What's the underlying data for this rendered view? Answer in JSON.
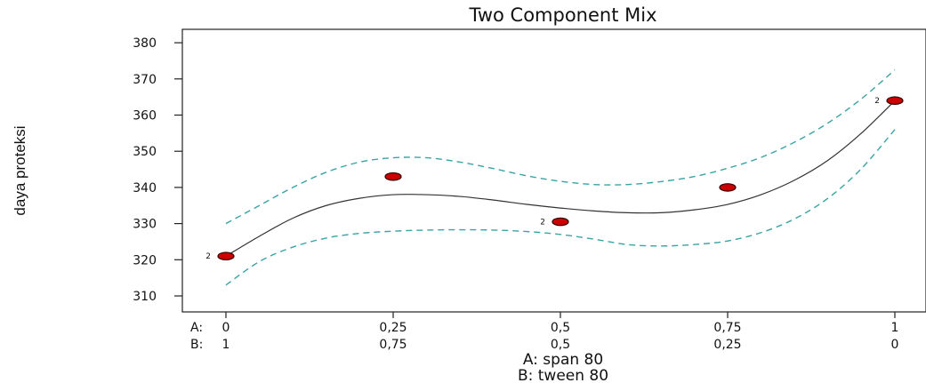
{
  "chart_data": {
    "type": "line",
    "title": "Two Component Mix",
    "ylabel": "daya proteksi",
    "xlabel_lines": [
      "A: span 80",
      "B: tween 80"
    ],
    "ylim": [
      305,
      385
    ],
    "yticks": [
      310,
      320,
      330,
      340,
      350,
      360,
      370,
      380
    ],
    "xlim": [
      0,
      1
    ],
    "component_row_labels": [
      "A:",
      "B:"
    ],
    "xticks": [
      {
        "x": 0,
        "a": "0",
        "b": "1"
      },
      {
        "x": 0.25,
        "a": "0,25",
        "b": "0,75"
      },
      {
        "x": 0.5,
        "a": "0,5",
        "b": "0,5"
      },
      {
        "x": 0.75,
        "a": "0,75",
        "b": "0,25"
      },
      {
        "x": 1,
        "a": "1",
        "b": "0"
      }
    ],
    "grid": false,
    "series": [
      {
        "role": "fit",
        "color": "#333333",
        "x": [
          0,
          0.05,
          0.1,
          0.15,
          0.2,
          0.25,
          0.3,
          0.35,
          0.4,
          0.45,
          0.5,
          0.55,
          0.6,
          0.65,
          0.7,
          0.75,
          0.8,
          0.85,
          0.9,
          0.95,
          1
        ],
        "y": [
          321,
          326.5,
          331.5,
          335,
          337,
          338,
          338,
          337.5,
          336.5,
          335.3,
          334.3,
          333.5,
          333,
          333,
          333.8,
          335.3,
          338,
          342,
          347.5,
          355,
          364
        ]
      },
      {
        "role": "upper-band",
        "color": "#3aa3a3",
        "x": [
          0,
          0.05,
          0.1,
          0.15,
          0.2,
          0.25,
          0.3,
          0.35,
          0.4,
          0.45,
          0.5,
          0.55,
          0.6,
          0.65,
          0.7,
          0.75,
          0.8,
          0.85,
          0.9,
          0.95,
          1
        ],
        "y": [
          330,
          335,
          340,
          344.2,
          347,
          348.2,
          348.2,
          347,
          345.2,
          343.2,
          341.7,
          340.8,
          340.8,
          341.6,
          343,
          345.3,
          348.3,
          352.5,
          357.8,
          364.5,
          372.5
        ]
      },
      {
        "role": "lower-band",
        "color": "#3aa3a3",
        "x": [
          0,
          0.05,
          0.1,
          0.15,
          0.2,
          0.25,
          0.3,
          0.35,
          0.4,
          0.45,
          0.5,
          0.55,
          0.6,
          0.65,
          0.7,
          0.75,
          0.8,
          0.85,
          0.9,
          0.95,
          1
        ],
        "y": [
          313,
          319.5,
          323.5,
          326,
          327.3,
          327.9,
          328.2,
          328.3,
          328.2,
          327.8,
          327,
          325.7,
          324.2,
          323.8,
          324.2,
          325.2,
          327.5,
          331.3,
          337,
          345.2,
          356
        ]
      }
    ],
    "points": [
      {
        "x": 0,
        "y": 321,
        "replicates": "2"
      },
      {
        "x": 0.25,
        "y": 343,
        "replicates": ""
      },
      {
        "x": 0.5,
        "y": 330.5,
        "replicates": "2"
      },
      {
        "x": 0.75,
        "y": 340,
        "replicates": ""
      },
      {
        "x": 1,
        "y": 364,
        "replicates": "2"
      }
    ],
    "point_color": "#cc0000"
  }
}
